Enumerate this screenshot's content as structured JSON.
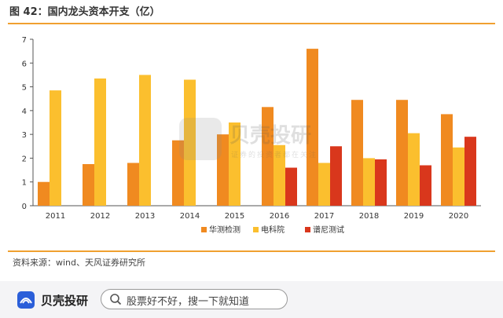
{
  "figure": {
    "title": "图 42：国内龙头资本开支（亿）",
    "source": "资料来源：wind、天风证券研究所"
  },
  "watermark": {
    "name": "贝壳投研",
    "slogan": "证券的投资者都在关注"
  },
  "bottom_bar": {
    "brand": "贝壳投研",
    "search_text": "股票好不好，搜一下就知道"
  },
  "chart_data": {
    "type": "bar",
    "categories": [
      "2011",
      "2012",
      "2013",
      "2014",
      "2015",
      "2016",
      "2017",
      "2018",
      "2019",
      "2020"
    ],
    "series": [
      {
        "name": "华测检测",
        "color": "#f08a20",
        "values": [
          1.0,
          1.75,
          1.8,
          2.75,
          3.0,
          4.15,
          6.6,
          4.45,
          4.45,
          3.85
        ]
      },
      {
        "name": "电科院",
        "color": "#fbbf2e",
        "values": [
          4.85,
          5.35,
          5.5,
          5.3,
          3.5,
          2.55,
          1.8,
          2.0,
          3.05,
          2.45
        ]
      },
      {
        "name": "谱尼测试",
        "color": "#d9371c",
        "values": [
          null,
          null,
          null,
          null,
          null,
          1.6,
          2.5,
          1.95,
          1.7,
          2.9
        ]
      }
    ],
    "yticks": [
      0,
      1,
      2,
      3,
      4,
      5,
      6,
      7
    ],
    "ylim": [
      0,
      7
    ],
    "grid": false,
    "legend_position": "bottom"
  }
}
